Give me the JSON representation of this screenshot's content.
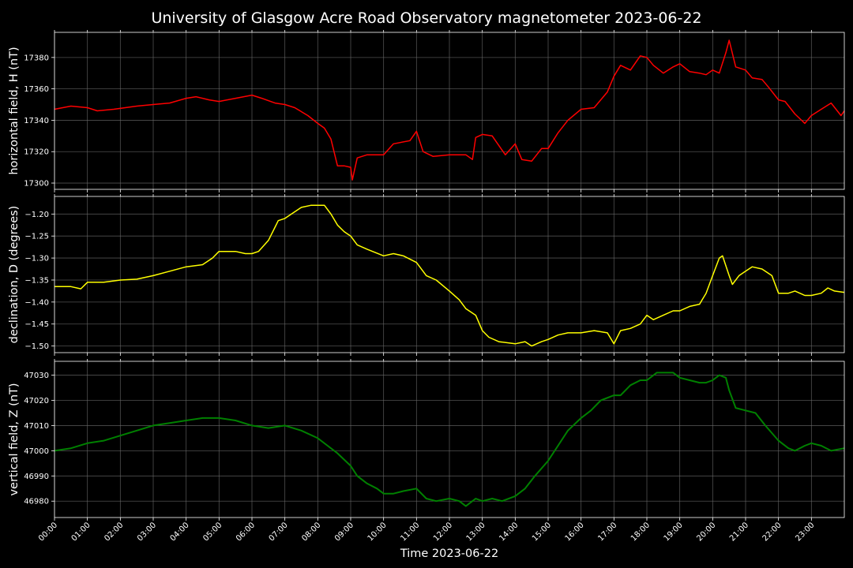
{
  "chart_data": {
    "type": "line",
    "title": "University of Glasgow Acre Road Observatory magnetometer 2023-06-22",
    "xlabel": "Time 2023-06-22",
    "x_ticks": [
      "00:00",
      "01:00",
      "02:00",
      "03:00",
      "04:00",
      "05:00",
      "06:00",
      "07:00",
      "08:00",
      "09:00",
      "10:00",
      "11:00",
      "12:00",
      "13:00",
      "14:00",
      "15:00",
      "16:00",
      "17:00",
      "18:00",
      "19:00",
      "20:00",
      "21:00",
      "22:00",
      "23:00"
    ],
    "xlim": [
      0,
      24
    ],
    "grid": true,
    "panels": [
      {
        "ylabel": "horizontal field, H (nT)",
        "ylim": [
          17296,
          17396
        ],
        "yticks": [
          17300,
          17320,
          17340,
          17360,
          17380
        ],
        "color": "#ff0000",
        "series": {
          "x": [
            0,
            0.5,
            1,
            1.3,
            1.8,
            2.5,
            3,
            3.5,
            4,
            4.3,
            4.7,
            5,
            5.5,
            6,
            6.3,
            6.7,
            7,
            7.3,
            7.7,
            8,
            8.2,
            8.4,
            8.6,
            8.8,
            9,
            9.05,
            9.2,
            9.5,
            10,
            10.3,
            10.8,
            11,
            11.2,
            11.5,
            12,
            12.5,
            12.7,
            12.8,
            13,
            13.3,
            13.5,
            13.7,
            14,
            14.2,
            14.5,
            14.8,
            15,
            15.3,
            15.6,
            16,
            16.4,
            16.8,
            17,
            17.2,
            17.5,
            17.8,
            18,
            18.2,
            18.5,
            18.8,
            19,
            19.3,
            19.6,
            19.8,
            20,
            20.2,
            20.4,
            20.5,
            20.7,
            21,
            21.2,
            21.5,
            21.7,
            22,
            22.2,
            22.5,
            22.8,
            23,
            23.3,
            23.6,
            23.9,
            24
          ],
          "y": [
            17347,
            17349,
            17348,
            17346,
            17347,
            17349,
            17350,
            17351,
            17354,
            17355,
            17353,
            17352,
            17354,
            17356,
            17354,
            17351,
            17350,
            17348,
            17343,
            17338,
            17335,
            17328,
            17311,
            17311,
            17310,
            17302,
            17316,
            17318,
            17318,
            17325,
            17327,
            17333,
            17320,
            17317,
            17318,
            17318,
            17315,
            17329,
            17331,
            17330,
            17324,
            17318,
            17325,
            17315,
            17314,
            17322,
            17322,
            17332,
            17340,
            17347,
            17348,
            17358,
            17368,
            17375,
            17372,
            17381,
            17380,
            17375,
            17370,
            17374,
            17376,
            17371,
            17370,
            17369,
            17372,
            17370,
            17383,
            17391,
            17374,
            17372,
            17367,
            17366,
            17361,
            17353,
            17352,
            17344,
            17338,
            17343,
            17347,
            17351,
            17343,
            17346
          ]
        }
      },
      {
        "ylabel": "declination, D (degrees)",
        "ylim": [
          -1.515,
          -1.16
        ],
        "yticks": [
          -1.2,
          -1.25,
          -1.3,
          -1.35,
          -1.4,
          -1.45,
          -1.5
        ],
        "color": "#ffff00",
        "series": {
          "x": [
            0,
            0.5,
            0.8,
            1,
            1.5,
            2,
            2.5,
            3,
            3.5,
            4,
            4.5,
            4.8,
            5,
            5.5,
            5.8,
            6,
            6.2,
            6.5,
            6.7,
            6.8,
            7,
            7.2,
            7.5,
            7.8,
            8,
            8.2,
            8.4,
            8.6,
            8.8,
            9,
            9.2,
            9.5,
            10,
            10.3,
            10.6,
            11,
            11.3,
            11.6,
            12,
            12.3,
            12.5,
            12.8,
            13,
            13.2,
            13.5,
            14,
            14.3,
            14.5,
            14.8,
            15,
            15.3,
            15.6,
            16,
            16.4,
            16.8,
            17,
            17.2,
            17.5,
            17.8,
            18,
            18.2,
            18.5,
            18.8,
            19,
            19.3,
            19.6,
            19.8,
            20,
            20.2,
            20.3,
            20.5,
            20.6,
            20.8,
            21,
            21.2,
            21.5,
            21.8,
            22,
            22.3,
            22.5,
            22.8,
            23,
            23.3,
            23.5,
            23.7,
            24
          ],
          "y": [
            -1.365,
            -1.365,
            -1.37,
            -1.355,
            -1.355,
            -1.35,
            -1.348,
            -1.34,
            -1.33,
            -1.32,
            -1.315,
            -1.3,
            -1.285,
            -1.285,
            -1.29,
            -1.29,
            -1.285,
            -1.26,
            -1.23,
            -1.215,
            -1.21,
            -1.2,
            -1.185,
            -1.18,
            -1.18,
            -1.18,
            -1.2,
            -1.225,
            -1.24,
            -1.25,
            -1.27,
            -1.28,
            -1.295,
            -1.29,
            -1.295,
            -1.31,
            -1.34,
            -1.35,
            -1.375,
            -1.395,
            -1.415,
            -1.43,
            -1.465,
            -1.48,
            -1.49,
            -1.495,
            -1.49,
            -1.5,
            -1.49,
            -1.485,
            -1.475,
            -1.47,
            -1.47,
            -1.465,
            -1.47,
            -1.495,
            -1.465,
            -1.46,
            -1.45,
            -1.43,
            -1.44,
            -1.43,
            -1.42,
            -1.42,
            -1.41,
            -1.405,
            -1.38,
            -1.34,
            -1.3,
            -1.295,
            -1.34,
            -1.36,
            -1.34,
            -1.33,
            -1.32,
            -1.325,
            -1.34,
            -1.38,
            -1.38,
            -1.375,
            -1.385,
            -1.385,
            -1.38,
            -1.368,
            -1.375,
            -1.378
          ]
        }
      },
      {
        "ylabel": "vertical field, Z (nT)",
        "ylim": [
          46973.5,
          47035.5
        ],
        "yticks": [
          46980,
          46990,
          47000,
          47010,
          47020,
          47030
        ],
        "color": "#008000",
        "series": {
          "x": [
            0,
            0.5,
            1,
            1.5,
            2,
            2.5,
            3,
            3.5,
            4,
            4.5,
            5,
            5.5,
            6,
            6.5,
            7,
            7.5,
            8,
            8.3,
            8.6,
            9,
            9.2,
            9.5,
            9.8,
            10,
            10.3,
            10.6,
            11,
            11.3,
            11.6,
            12,
            12.3,
            12.5,
            12.8,
            13,
            13.3,
            13.6,
            14,
            14.3,
            14.6,
            15,
            15.3,
            15.6,
            16,
            16.3,
            16.6,
            17,
            17.2,
            17.5,
            17.8,
            18,
            18.3,
            18.6,
            18.8,
            19,
            19.3,
            19.6,
            19.8,
            20,
            20.2,
            20.4,
            20.5,
            20.7,
            21,
            21.3,
            21.6,
            22,
            22.3,
            22.5,
            22.8,
            23,
            23.3,
            23.6,
            24
          ],
          "y": [
            47000,
            47001,
            47003,
            47004,
            47006,
            47008,
            47010,
            47011,
            47012,
            47013,
            47013,
            47012,
            47010,
            47009,
            47010,
            47008,
            47005,
            47002,
            46999,
            46994,
            46990,
            46987,
            46985,
            46983,
            46983,
            46984,
            46985,
            46981,
            46980,
            46981,
            46980,
            46978,
            46981,
            46980,
            46981,
            46980,
            46982,
            46985,
            46990,
            46996,
            47002,
            47008,
            47013,
            47016,
            47020,
            47022,
            47022,
            47026,
            47028,
            47028,
            47031,
            47031,
            47031,
            47029,
            47028,
            47027,
            47027,
            47028,
            47030,
            47029,
            47024,
            47017,
            47016,
            47015,
            47010,
            47004,
            47001,
            47000,
            47002,
            47003,
            47002,
            47000,
            47001
          ]
        }
      }
    ]
  }
}
